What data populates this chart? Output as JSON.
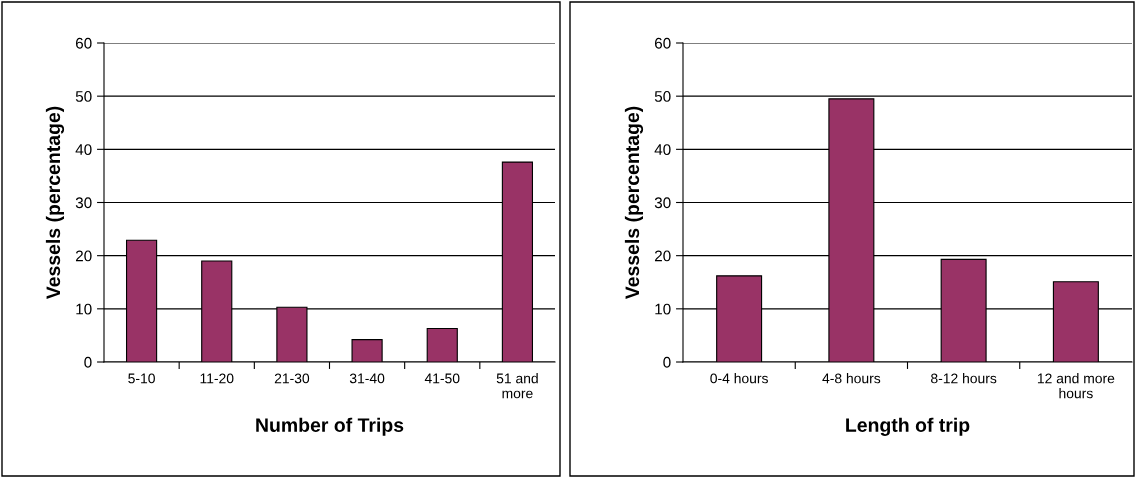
{
  "chart_data": [
    {
      "type": "bar",
      "xlabel": "Number of Trips",
      "ylabel": "Vessels (percentage)",
      "categories": [
        "5-10",
        "11-20",
        "21-30",
        "31-40",
        "41-50",
        "51 and\nmore"
      ],
      "values": [
        22.9,
        19.0,
        10.3,
        4.2,
        6.3,
        37.6
      ],
      "color": "#993366",
      "ylim": [
        0,
        60
      ],
      "yticks": [
        0,
        10,
        20,
        30,
        40,
        50,
        60
      ],
      "grid": "y"
    },
    {
      "type": "bar",
      "xlabel": "Length of trip",
      "ylabel": "Vessels (percentage)",
      "categories": [
        "0-4 hours",
        "4-8 hours",
        "8-12 hours",
        "12 and more\nhours"
      ],
      "values": [
        16.2,
        49.5,
        19.3,
        15.1
      ],
      "color": "#993366",
      "ylim": [
        0,
        60
      ],
      "yticks": [
        0,
        10,
        20,
        30,
        40,
        50,
        60
      ],
      "grid": "y"
    }
  ]
}
